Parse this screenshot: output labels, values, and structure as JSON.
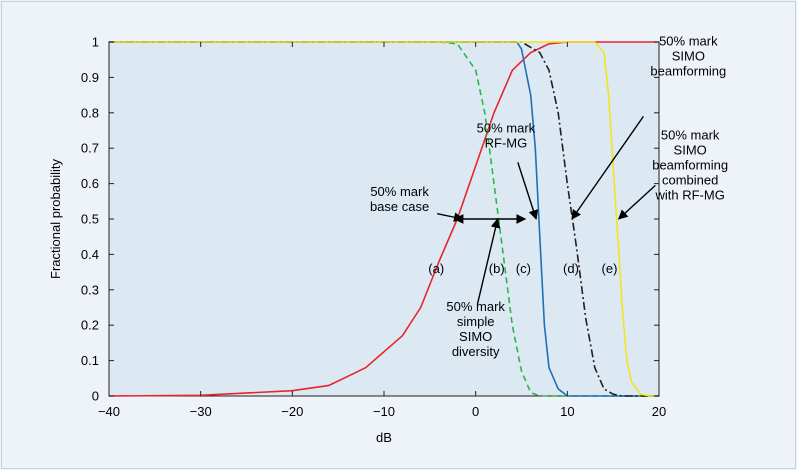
{
  "chart_data": {
    "type": "line",
    "title": "",
    "xlabel": "dB",
    "ylabel": "Fractional probability",
    "xlim": [
      -40,
      20
    ],
    "ylim": [
      0,
      1
    ],
    "xticks": [
      -40,
      -30,
      -20,
      -10,
      0,
      10,
      20
    ],
    "yticks": [
      0,
      0.1,
      0.2,
      0.3,
      0.4,
      0.5,
      0.6,
      0.7,
      0.8,
      0.9,
      1
    ],
    "xtick_labels": [
      "−40",
      "−30",
      "−20",
      "−10",
      "0",
      "10",
      "20"
    ],
    "ytick_labels": [
      "0",
      "0.1",
      "0.2",
      "0.3",
      "0.4",
      "0.5",
      "0.6",
      "0.7",
      "0.8",
      "0.9",
      "1"
    ],
    "grid": false,
    "colors": {
      "plot_background": "#dce9f3",
      "page_background": "#edf3f8"
    },
    "series": [
      {
        "key": "a",
        "label": "(a)",
        "color": "#e8252b",
        "dash": "solid",
        "x": [
          -40,
          -30,
          -20,
          -16,
          -12,
          -8,
          -6,
          -4,
          -2,
          0,
          2,
          4,
          6,
          8,
          10,
          20
        ],
        "y": [
          0,
          0.002,
          0.015,
          0.03,
          0.08,
          0.17,
          0.25,
          0.38,
          0.5,
          0.65,
          0.8,
          0.92,
          0.97,
          0.995,
          1,
          1
        ]
      },
      {
        "key": "b",
        "label": "(b)",
        "color": "#2bb54a",
        "dash": "dashed",
        "x": [
          -40,
          -4,
          -2,
          0,
          1,
          2,
          3,
          4,
          5,
          6,
          7,
          20
        ],
        "y": [
          1,
          1,
          0.995,
          0.92,
          0.8,
          0.6,
          0.4,
          0.2,
          0.07,
          0.01,
          0,
          0
        ]
      },
      {
        "key": "c",
        "label": "(c)",
        "color": "#1f6fb8",
        "dash": "solid",
        "x": [
          -40,
          4.5,
          5,
          6,
          6.5,
          7,
          7.5,
          8,
          9,
          10,
          20
        ],
        "y": [
          1,
          1,
          0.98,
          0.85,
          0.7,
          0.45,
          0.2,
          0.08,
          0.02,
          0,
          0
        ]
      },
      {
        "key": "d",
        "label": "(d)",
        "color": "#231f20",
        "dash": "dashdot",
        "x": [
          -40,
          5,
          7,
          8,
          9,
          10,
          11,
          12,
          13,
          14,
          15,
          16,
          20
        ],
        "y": [
          1,
          1,
          0.97,
          0.92,
          0.8,
          0.6,
          0.42,
          0.22,
          0.08,
          0.02,
          0.005,
          0,
          0
        ]
      },
      {
        "key": "e",
        "label": "(e)",
        "color": "#f2e51b",
        "dash": "solid",
        "x": [
          -40,
          13,
          14,
          14.5,
          15,
          15.5,
          16,
          16.5,
          17,
          18,
          19,
          20
        ],
        "y": [
          1,
          1,
          0.97,
          0.85,
          0.65,
          0.45,
          0.25,
          0.1,
          0.04,
          0.005,
          0,
          0
        ]
      }
    ],
    "series_labels": [
      {
        "key": "a",
        "text": "(a)",
        "x": -4.3,
        "y": 0.36
      },
      {
        "key": "b",
        "text": "(b)",
        "x": 2.3,
        "y": 0.36
      },
      {
        "key": "c",
        "text": "(c)",
        "x": 5.2,
        "y": 0.36
      },
      {
        "key": "d",
        "text": "(d)",
        "x": 10.4,
        "y": 0.36
      },
      {
        "key": "e",
        "text": "(e)",
        "x": 14.6,
        "y": 0.36
      }
    ],
    "annotations": [
      {
        "key": "base-case",
        "lines": [
          "50% mark",
          "base case"
        ],
        "text_x": -8.3,
        "text_y": 0.565,
        "anchor": "middle",
        "arrow_from": [
          -4.2,
          0.515
        ],
        "arrow_to": [
          -1.4,
          0.5
        ]
      },
      {
        "key": "rf-mg",
        "lines": [
          "50% mark",
          "RF-MG"
        ],
        "text_x": 3.3,
        "text_y": 0.745,
        "anchor": "middle",
        "arrow_from": [
          4.6,
          0.66
        ],
        "arrow_to": [
          6.6,
          0.5
        ]
      },
      {
        "key": "simple-simo-diversity",
        "lines": [
          "50% mark",
          "simple",
          "SIMO",
          "diversity"
        ],
        "text_x": 0,
        "text_y": 0.24,
        "anchor": "middle",
        "arrow_from": [
          0.2,
          0.26
        ],
        "arrow_to": [
          2.4,
          0.5
        ]
      },
      {
        "key": "simo-beamforming",
        "lines": [
          "50% mark",
          "SIMO",
          "beamforming"
        ],
        "text_x": 23.2,
        "text_y": 0.99,
        "anchor": "middle",
        "arrow_from": [
          18.3,
          0.79
        ],
        "arrow_to": [
          10.5,
          0.5
        ]
      },
      {
        "key": "simo-beamforming-combined-rf-mg",
        "lines": [
          "50% mark",
          "SIMO",
          "beamforming",
          "combined",
          "with RF-MG"
        ],
        "text_x": 23.4,
        "text_y": 0.725,
        "anchor": "middle",
        "arrow_from": [
          19.6,
          0.595
        ],
        "arrow_to": [
          15.6,
          0.5
        ]
      }
    ],
    "double_arrow": {
      "from": [
        -2.3,
        0.5
      ],
      "to": [
        5.4,
        0.5
      ]
    }
  }
}
